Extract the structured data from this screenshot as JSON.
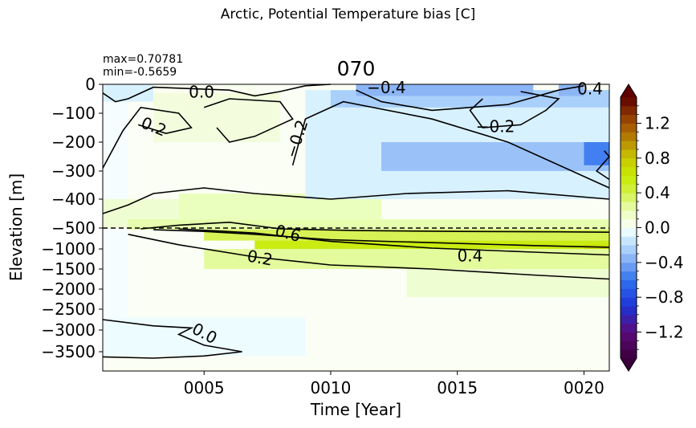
{
  "figure": {
    "suptitle": "Arctic, Potential Temperature bias [C]",
    "stats": {
      "max": "max=0.70781",
      "min": "min=-0.5659"
    }
  },
  "chart_data": {
    "type": "heatmap",
    "title": "070",
    "xlabel": "Time [Year]",
    "ylabel": "Elevation [m]",
    "xlim": [
      1,
      21
    ],
    "x_ticks": [
      {
        "value": 5,
        "label": "0005"
      },
      {
        "value": 10,
        "label": "0010"
      },
      {
        "value": 15,
        "label": "0015"
      },
      {
        "value": 20,
        "label": "0020"
      }
    ],
    "y_ticks": [
      "0",
      "−100",
      "−200",
      "−300",
      "−400",
      "−500",
      "−1000",
      "−1500",
      "−2000",
      "−2500",
      "−3000",
      "−3500"
    ],
    "y_levels": [
      0,
      -100,
      -200,
      -300,
      -400,
      -500,
      -1000,
      -1500,
      -2000,
      -2500,
      -3000,
      -3500
    ],
    "y_bottom": -3950,
    "reference_line": {
      "y": -500,
      "style": "dashed"
    },
    "colorbar": {
      "range": [
        -1.5,
        1.5
      ],
      "step": 0.1,
      "ticks": [
        {
          "value": 1.2,
          "label": "1.2"
        },
        {
          "value": 0.8,
          "label": "0.8"
        },
        {
          "value": 0.4,
          "label": "0.4"
        },
        {
          "value": 0.0,
          "label": "0.0"
        },
        {
          "value": -0.4,
          "label": "−0.4"
        },
        {
          "value": -0.8,
          "label": "−0.8"
        },
        {
          "value": -1.2,
          "label": "−1.2"
        }
      ],
      "extend": "both"
    },
    "bias_field": [
      {
        "x": [
          1,
          3
        ],
        "y": [
          0,
          -60
        ],
        "value": -0.1
      },
      {
        "x": [
          1,
          2
        ],
        "y": [
          -60,
          -3000
        ],
        "value": -0.02
      },
      {
        "x": [
          3,
          7
        ],
        "y": [
          0,
          -30
        ],
        "value": 0.03
      },
      {
        "x": [
          3,
          8
        ],
        "y": [
          -30,
          -200
        ],
        "value": 0.08
      },
      {
        "x": [
          1,
          4
        ],
        "y": [
          -400,
          -500
        ],
        "value": 0.12
      },
      {
        "x": [
          4,
          12
        ],
        "y": [
          -380,
          -470
        ],
        "value": 0.18
      },
      {
        "x": [
          2,
          21
        ],
        "y": [
          -470,
          -540
        ],
        "value": 0.22
      },
      {
        "x": [
          5,
          21
        ],
        "y": [
          -540,
          -800
        ],
        "value": 0.38
      },
      {
        "x": [
          7,
          21
        ],
        "y": [
          -800,
          -1000
        ],
        "value": 0.55
      },
      {
        "x": [
          20,
          21
        ],
        "y": [
          -900,
          -1000
        ],
        "value": 0.68
      },
      {
        "x": [
          5,
          21
        ],
        "y": [
          -1000,
          -1500
        ],
        "value": 0.25
      },
      {
        "x": [
          13,
          21
        ],
        "y": [
          -1500,
          -2200
        ],
        "value": 0.12
      },
      {
        "x": [
          9,
          21
        ],
        "y": [
          -20,
          -400
        ],
        "value": -0.1
      },
      {
        "x": [
          10,
          21
        ],
        "y": [
          -20,
          -80
        ],
        "value": -0.25
      },
      {
        "x": [
          11,
          18
        ],
        "y": [
          0,
          -40
        ],
        "value": -0.35
      },
      {
        "x": [
          19,
          20
        ],
        "y": [
          0,
          -40
        ],
        "value": -0.35
      },
      {
        "x": [
          12,
          21
        ],
        "y": [
          -200,
          -300
        ],
        "value": -0.3
      },
      {
        "x": [
          20,
          21
        ],
        "y": [
          -200,
          -280
        ],
        "value": -0.55
      },
      {
        "x": [
          1,
          9
        ],
        "y": [
          -2700,
          -3600
        ],
        "value": -0.04
      }
    ],
    "contour_labels": [
      {
        "text": "0.0",
        "x": 4.9,
        "y": -30,
        "rotation": 0
      },
      {
        "text": "0.2",
        "x": 3.0,
        "y": -150,
        "rotation": 22
      },
      {
        "text": "−0.2",
        "x": 8.7,
        "y": -190,
        "rotation": -72
      },
      {
        "text": "−0.4",
        "x": 12.2,
        "y": -15,
        "rotation": 0
      },
      {
        "text": "−0.2",
        "x": 16.5,
        "y": -150,
        "rotation": 0
      },
      {
        "text": "0.4",
        "x": 21.0,
        "y": -20,
        "rotation": 0
      },
      {
        "text": "0.6",
        "x": 8.3,
        "y": -650,
        "rotation": 15
      },
      {
        "text": "0.2",
        "x": 7.2,
        "y": -1250,
        "rotation": 10
      },
      {
        "text": "0.4",
        "x": 15.5,
        "y": -1200,
        "rotation": 0
      },
      {
        "text": "0.0",
        "x": 5.0,
        "y": -3100,
        "rotation": 28
      }
    ]
  }
}
